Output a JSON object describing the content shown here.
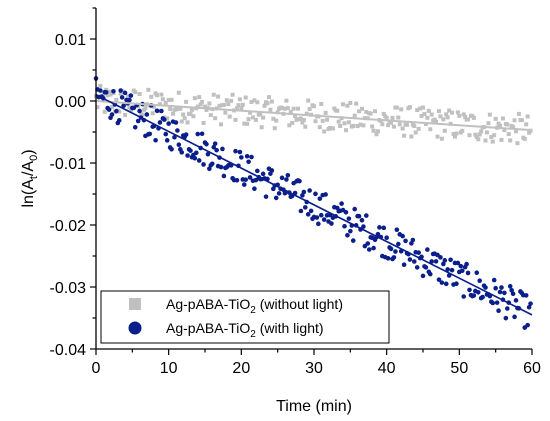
{
  "chart_data": {
    "type": "scatter",
    "title": "",
    "xlabel": "Time (min)",
    "ylabel": "ln(A_t/A_0)",
    "ylabel_parts": {
      "pre": "ln(A",
      "sub1": "t",
      "mid": "/A",
      "sub2": "0",
      "post": ")"
    },
    "xlim": [
      0,
      60
    ],
    "ylim": [
      -0.04,
      0.015
    ],
    "x_ticks": [
      0,
      10,
      20,
      30,
      40,
      50,
      60
    ],
    "y_ticks": [
      -0.04,
      -0.03,
      -0.02,
      -0.01,
      0.0,
      0.01
    ],
    "x_tick_labels": [
      "0",
      "10",
      "20",
      "30",
      "40",
      "50",
      "60"
    ],
    "y_tick_labels": [
      "-0.04",
      "-0.03",
      "-0.02",
      "-0.01",
      "0.00",
      "0.01"
    ],
    "grid": false,
    "legend_position": "bottom-left",
    "series": [
      {
        "name": "Ag-pABA-TiO2 (without light)",
        "legend_parts": {
          "pre": "Ag-pABA-TiO",
          "sub": "2",
          "post": " (without light)"
        },
        "color": "#c0c0c0",
        "marker": "square",
        "fit_line": {
          "x": [
            0,
            60
          ],
          "y": [
            0.0,
            -0.0047
          ]
        },
        "x_start": 0.0,
        "x_step": 0.2,
        "count": 300,
        "trend_intercept": 0.0,
        "trend_slope": -7.8e-05,
        "noise_amplitude": 0.0025
      },
      {
        "name": "Ag-pABA-TiO2 (with light)",
        "legend_parts": {
          "pre": "Ag-pABA-TiO",
          "sub": "2",
          "post": " (with light)"
        },
        "color": "#0a1e8c",
        "marker": "circle",
        "fit_line": {
          "x": [
            0,
            60
          ],
          "y": [
            0.001,
            -0.0345
          ]
        },
        "x_start": 0.0,
        "x_step": 0.2,
        "count": 300,
        "trend_intercept": 0.001,
        "trend_slope": -0.00059,
        "noise_amplitude": 0.0028
      }
    ]
  }
}
